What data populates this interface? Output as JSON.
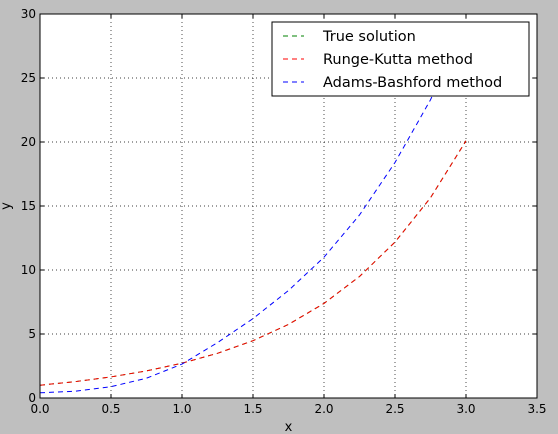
{
  "chart_data": {
    "type": "line",
    "title": "",
    "xlabel": "x",
    "ylabel": "y",
    "xlim": [
      0,
      3.5
    ],
    "ylim": [
      0,
      30
    ],
    "xticks": [
      0.0,
      0.5,
      1.0,
      1.5,
      2.0,
      2.5,
      3.0,
      3.5
    ],
    "xtick_labels": [
      "0.0",
      "0.5",
      "1.0",
      "1.5",
      "2.0",
      "2.5",
      "3.0",
      "3.5"
    ],
    "yticks": [
      0,
      5,
      10,
      15,
      20,
      25,
      30
    ],
    "ytick_labels": [
      "0",
      "5",
      "10",
      "15",
      "20",
      "25",
      "30"
    ],
    "grid": true,
    "legend_position": "top-right",
    "series": [
      {
        "name": "True solution",
        "color": "#008000",
        "style": "dashed",
        "x": [
          0.0,
          0.25,
          0.5,
          0.75,
          1.0,
          1.25,
          1.5,
          1.75,
          2.0,
          2.25,
          2.5,
          2.75,
          3.0
        ],
        "y": [
          1.0,
          1.28,
          1.65,
          2.12,
          2.72,
          3.49,
          4.48,
          5.75,
          7.39,
          9.49,
          12.18,
          15.64,
          20.09
        ]
      },
      {
        "name": "Runge-Kutta method",
        "color": "#ff0000",
        "style": "dashed",
        "x": [
          0.0,
          0.25,
          0.5,
          0.75,
          1.0,
          1.25,
          1.5,
          1.75,
          2.0,
          2.25,
          2.5,
          2.75,
          3.0
        ],
        "y": [
          1.0,
          1.28,
          1.65,
          2.12,
          2.72,
          3.49,
          4.48,
          5.75,
          7.39,
          9.49,
          12.18,
          15.64,
          20.09
        ]
      },
      {
        "name": "Adams-Bashford method",
        "color": "#0000ff",
        "style": "dashed",
        "x": [
          0.0,
          0.25,
          0.5,
          0.75,
          1.0,
          1.25,
          1.5,
          1.75,
          2.0,
          2.25,
          2.5,
          2.75,
          2.8
        ],
        "y": [
          0.41,
          0.53,
          0.88,
          1.55,
          2.65,
          4.33,
          6.2,
          8.4,
          11.0,
          14.3,
          18.4,
          23.3,
          24.5
        ]
      }
    ]
  }
}
